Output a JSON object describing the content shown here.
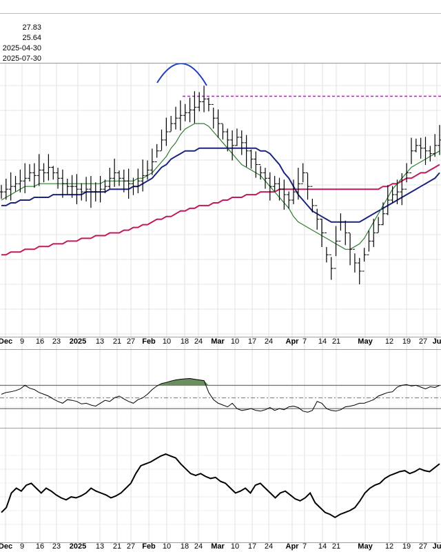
{
  "header": {
    "values": [
      "27.83",
      "25.64",
      "2025-04-30",
      "2025-07-30"
    ]
  },
  "x_axis": {
    "labels": [
      {
        "text": "Dec",
        "bold": true
      },
      {
        "text": "9"
      },
      {
        "text": "16"
      },
      {
        "text": "23"
      },
      {
        "text": "2025",
        "bold": true
      },
      {
        "text": "13"
      },
      {
        "text": "21"
      },
      {
        "text": "27"
      },
      {
        "text": "Feb",
        "bold": true
      },
      {
        "text": "10"
      },
      {
        "text": "18"
      },
      {
        "text": "24"
      },
      {
        "text": "Mar",
        "bold": true
      },
      {
        "text": "10"
      },
      {
        "text": "17"
      },
      {
        "text": "24"
      },
      {
        "text": "Apr",
        "bold": true
      },
      {
        "text": "7"
      },
      {
        "text": "14"
      },
      {
        "text": "21"
      },
      {
        "text": "May",
        "bold": true
      },
      {
        "text": "12"
      },
      {
        "text": "19"
      },
      {
        "text": "27"
      },
      {
        "text": "Ju",
        "bold": true
      }
    ]
  },
  "chart_data": {
    "type": "line",
    "main_panel": {
      "price_bars": [
        0.53,
        0.54,
        0.55,
        0.56,
        0.57,
        0.58,
        0.6,
        0.59,
        0.61,
        0.6,
        0.62,
        0.6,
        0.58,
        0.56,
        0.55,
        0.55,
        0.54,
        0.53,
        0.54,
        0.53,
        0.53,
        0.54,
        0.55,
        0.58,
        0.6,
        0.58,
        0.57,
        0.56,
        0.55,
        0.57,
        0.59,
        0.61,
        0.64,
        0.68,
        0.72,
        0.75,
        0.78,
        0.8,
        0.81,
        0.82,
        0.83,
        0.84,
        0.86,
        0.87,
        0.85,
        0.8,
        0.78,
        0.75,
        0.72,
        0.7,
        0.73,
        0.71,
        0.68,
        0.65,
        0.63,
        0.6,
        0.58,
        0.55,
        0.56,
        0.54,
        0.52,
        0.5,
        0.53,
        0.56,
        0.6,
        0.55,
        0.48,
        0.43,
        0.38,
        0.3,
        0.25,
        0.35,
        0.42,
        0.38,
        0.32,
        0.27,
        0.24,
        0.3,
        0.35,
        0.38,
        0.41,
        0.45,
        0.5,
        0.52,
        0.53,
        0.54,
        0.6,
        0.68,
        0.7,
        0.69,
        0.68,
        0.67,
        0.7,
        0.72
      ],
      "sma_short": [
        0.5,
        0.51,
        0.52,
        0.53,
        0.54,
        0.55,
        0.55,
        0.55,
        0.56,
        0.56,
        0.56,
        0.56,
        0.56,
        0.56,
        0.56,
        0.56,
        0.56,
        0.56,
        0.56,
        0.56,
        0.56,
        0.56,
        0.57,
        0.57,
        0.57,
        0.57,
        0.57,
        0.57,
        0.57,
        0.58,
        0.58,
        0.59,
        0.6,
        0.62,
        0.64,
        0.66,
        0.69,
        0.71,
        0.74,
        0.76,
        0.77,
        0.78,
        0.78,
        0.78,
        0.77,
        0.75,
        0.73,
        0.71,
        0.69,
        0.67,
        0.65,
        0.63,
        0.62,
        0.61,
        0.6,
        0.59,
        0.57,
        0.55,
        0.53,
        0.51,
        0.49,
        0.47,
        0.44,
        0.42,
        0.41,
        0.4,
        0.39,
        0.38,
        0.37,
        0.36,
        0.35,
        0.34,
        0.33,
        0.32,
        0.32,
        0.33,
        0.34,
        0.36,
        0.39,
        0.42,
        0.45,
        0.48,
        0.51,
        0.54,
        0.56,
        0.58,
        0.6,
        0.62,
        0.63,
        0.64,
        0.65,
        0.66,
        0.67,
        0.68
      ],
      "sma_mid": [
        0.48,
        0.48,
        0.49,
        0.49,
        0.5,
        0.5,
        0.5,
        0.51,
        0.51,
        0.51,
        0.51,
        0.52,
        0.52,
        0.52,
        0.52,
        0.52,
        0.52,
        0.52,
        0.53,
        0.53,
        0.53,
        0.53,
        0.53,
        0.54,
        0.54,
        0.54,
        0.54,
        0.54,
        0.55,
        0.55,
        0.56,
        0.57,
        0.58,
        0.6,
        0.62,
        0.63,
        0.65,
        0.66,
        0.67,
        0.68,
        0.68,
        0.68,
        0.69,
        0.69,
        0.69,
        0.69,
        0.69,
        0.69,
        0.69,
        0.69,
        0.69,
        0.69,
        0.69,
        0.69,
        0.69,
        0.68,
        0.68,
        0.67,
        0.65,
        0.63,
        0.6,
        0.58,
        0.55,
        0.52,
        0.5,
        0.48,
        0.46,
        0.45,
        0.44,
        0.43,
        0.42,
        0.42,
        0.42,
        0.42,
        0.42,
        0.42,
        0.42,
        0.43,
        0.44,
        0.45,
        0.46,
        0.47,
        0.48,
        0.49,
        0.5,
        0.51,
        0.52,
        0.53,
        0.54,
        0.55,
        0.56,
        0.57,
        0.58,
        0.6
      ],
      "sma_long": [
        0.3,
        0.3,
        0.31,
        0.31,
        0.31,
        0.32,
        0.32,
        0.32,
        0.33,
        0.33,
        0.33,
        0.34,
        0.34,
        0.34,
        0.35,
        0.35,
        0.35,
        0.36,
        0.36,
        0.36,
        0.37,
        0.37,
        0.37,
        0.38,
        0.38,
        0.38,
        0.39,
        0.39,
        0.4,
        0.4,
        0.41,
        0.41,
        0.42,
        0.43,
        0.43,
        0.44,
        0.44,
        0.45,
        0.46,
        0.46,
        0.47,
        0.47,
        0.48,
        0.48,
        0.48,
        0.49,
        0.49,
        0.5,
        0.5,
        0.51,
        0.51,
        0.51,
        0.52,
        0.52,
        0.52,
        0.53,
        0.53,
        0.53,
        0.53,
        0.54,
        0.54,
        0.54,
        0.54,
        0.54,
        0.54,
        0.54,
        0.54,
        0.54,
        0.54,
        0.54,
        0.54,
        0.54,
        0.54,
        0.54,
        0.54,
        0.54,
        0.54,
        0.54,
        0.54,
        0.54,
        0.54,
        0.55,
        0.55,
        0.56,
        0.56,
        0.57,
        0.58,
        0.58,
        0.59,
        0.6,
        0.6,
        0.61,
        0.62,
        0.63
      ],
      "resistance_level": 0.88,
      "colors": {
        "price": "#000000",
        "sma_short": "#2e7d32",
        "sma_mid": "#1a237e",
        "sma_long": "#c2185b",
        "resistance": "#e000e0",
        "arc": "#1f3fbf"
      }
    },
    "oscillator_panel": {
      "values": [
        0.55,
        0.6,
        0.62,
        0.65,
        0.7,
        0.8,
        0.72,
        0.68,
        0.6,
        0.55,
        0.5,
        0.42,
        0.35,
        0.3,
        0.4,
        0.38,
        0.35,
        0.28,
        0.3,
        0.25,
        0.22,
        0.3,
        0.38,
        0.35,
        0.45,
        0.5,
        0.42,
        0.35,
        0.3,
        0.4,
        0.45,
        0.55,
        0.68,
        0.78,
        0.85,
        0.88,
        0.92,
        0.95,
        0.97,
        0.98,
        0.99,
        0.97,
        0.95,
        0.93,
        0.6,
        0.4,
        0.3,
        0.25,
        0.2,
        0.3,
        0.15,
        0.1,
        0.12,
        0.15,
        0.1,
        0.08,
        0.12,
        0.18,
        0.1,
        0.15,
        0.12,
        0.2,
        0.22,
        0.18,
        0.08,
        0.05,
        0.1,
        0.35,
        0.3,
        0.15,
        0.1,
        0.08,
        0.12,
        0.2,
        0.22,
        0.25,
        0.3,
        0.3,
        0.35,
        0.4,
        0.5,
        0.55,
        0.6,
        0.62,
        0.75,
        0.8,
        0.82,
        0.78,
        0.8,
        0.75,
        0.7,
        0.76,
        0.74,
        0.8
      ],
      "upper": 0.8,
      "lower": 0.15,
      "mid": 0.45,
      "fill_color": "#6b8e5e"
    },
    "lower_panel": {
      "values": [
        0.3,
        0.35,
        0.5,
        0.55,
        0.52,
        0.58,
        0.6,
        0.55,
        0.5,
        0.55,
        0.52,
        0.48,
        0.45,
        0.43,
        0.46,
        0.45,
        0.47,
        0.5,
        0.55,
        0.52,
        0.5,
        0.48,
        0.45,
        0.47,
        0.5,
        0.55,
        0.6,
        0.7,
        0.78,
        0.8,
        0.82,
        0.85,
        0.88,
        0.9,
        0.88,
        0.86,
        0.8,
        0.75,
        0.7,
        0.68,
        0.7,
        0.67,
        0.65,
        0.66,
        0.62,
        0.6,
        0.55,
        0.5,
        0.52,
        0.55,
        0.5,
        0.58,
        0.6,
        0.55,
        0.5,
        0.45,
        0.5,
        0.52,
        0.48,
        0.44,
        0.42,
        0.45,
        0.5,
        0.4,
        0.35,
        0.3,
        0.28,
        0.25,
        0.28,
        0.3,
        0.32,
        0.35,
        0.42,
        0.5,
        0.55,
        0.58,
        0.6,
        0.65,
        0.68,
        0.7,
        0.72,
        0.73,
        0.7,
        0.72,
        0.75,
        0.73,
        0.72,
        0.76,
        0.8
      ]
    }
  }
}
